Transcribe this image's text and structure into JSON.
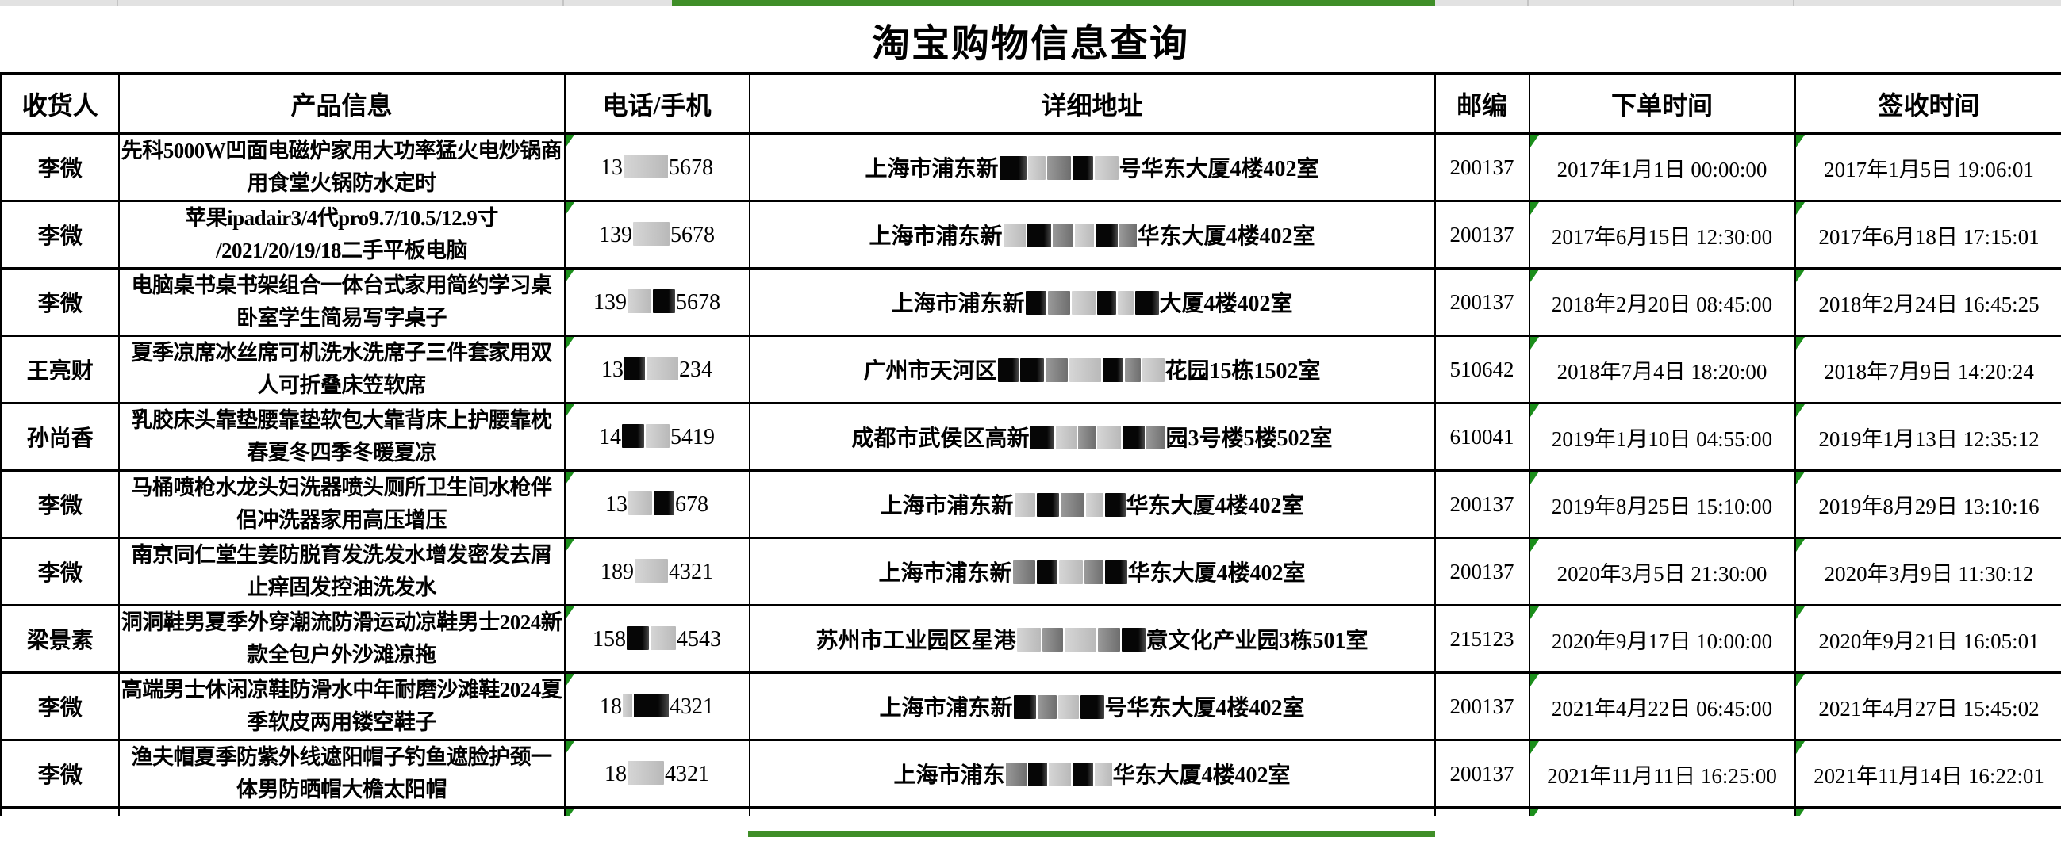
{
  "page": {
    "title": "淘宝购物信息查询"
  },
  "colors": {
    "selection_green": "#3f8e28",
    "triangle_green": "#1b8e1b",
    "top_strip_gray": "#e2e2e2",
    "grid_black": "#000000"
  },
  "table": {
    "headers": [
      "收货人",
      "产品信息",
      "电话/手机",
      "详细地址",
      "邮编",
      "下单时间",
      "签收时间"
    ],
    "header_keys": [
      "recipient",
      "product",
      "phone",
      "address",
      "postal",
      "order-time",
      "sign-time"
    ],
    "rows": [
      {
        "recipient": "李微",
        "product": [
          "先科5000W凹面电磁炉家用大功率猛火电炒锅商",
          "用食堂火锅防水定时"
        ],
        "phone": [
          {
            "t": "13"
          },
          {
            "r": "l",
            "w": 56
          },
          {
            "t": "5678"
          }
        ],
        "address": [
          {
            "t": "上海市浦东新"
          },
          {
            "r": "d",
            "w": 34
          },
          {
            "r": "l",
            "w": 22
          },
          {
            "r": "g",
            "w": 30
          },
          {
            "r": "d",
            "w": 26
          },
          {
            "r": "l",
            "w": 30
          },
          {
            "t": "号华东大厦4楼402室"
          }
        ],
        "postal": "200137",
        "order_time": "2017年1月1日 00:00:00",
        "sign_time": "2017年1月5日 19:06:01"
      },
      {
        "recipient": "李微",
        "product": [
          "苹果ipadair3/4代pro9.7/10.5/12.9寸",
          "/2021/20/19/18二手平板电脑"
        ],
        "phone": [
          {
            "t": "139"
          },
          {
            "r": "l",
            "w": 46
          },
          {
            "t": "5678"
          }
        ],
        "address": [
          {
            "t": "上海市浦东新"
          },
          {
            "r": "l",
            "w": 28
          },
          {
            "r": "d",
            "w": 30
          },
          {
            "r": "g",
            "w": 26
          },
          {
            "r": "l",
            "w": 24
          },
          {
            "r": "d",
            "w": 28
          },
          {
            "r": "g",
            "w": 22
          },
          {
            "t": "华东大厦4楼402室"
          }
        ],
        "postal": "200137",
        "order_time": "2017年6月15日 12:30:00",
        "sign_time": "2017年6月18日 17:15:01"
      },
      {
        "recipient": "李微",
        "product": [
          "电脑桌书桌书架组合一体台式家用简约学习桌",
          "卧室学生简易写字桌子"
        ],
        "phone": [
          {
            "t": "139"
          },
          {
            "r": "l",
            "w": 30
          },
          {
            "r": "d",
            "w": 28
          },
          {
            "t": "5678"
          }
        ],
        "address": [
          {
            "t": "上海市浦东新"
          },
          {
            "r": "d",
            "w": 26
          },
          {
            "r": "g",
            "w": 28
          },
          {
            "r": "l",
            "w": 30
          },
          {
            "r": "d",
            "w": 24
          },
          {
            "r": "l",
            "w": 20
          },
          {
            "r": "d",
            "w": 30
          },
          {
            "t": "大厦4楼402室"
          }
        ],
        "postal": "200137",
        "order_time": "2018年2月20日 08:45:00",
        "sign_time": "2018年2月24日 16:45:25"
      },
      {
        "recipient": "王亮财",
        "product": [
          "夏季凉席冰丝席可机洗水洗席子三件套家用双",
          "人可折叠床笠软席"
        ],
        "phone": [
          {
            "t": "13"
          },
          {
            "r": "d",
            "w": 26
          },
          {
            "r": "l",
            "w": 40
          },
          {
            "t": "234"
          }
        ],
        "address": [
          {
            "t": "广州市天河区"
          },
          {
            "r": "d",
            "w": 26
          },
          {
            "r": "d",
            "w": 30
          },
          {
            "r": "g",
            "w": 28
          },
          {
            "r": "l",
            "w": 40
          },
          {
            "r": "d",
            "w": 26
          },
          {
            "r": "g",
            "w": 20
          },
          {
            "r": "l",
            "w": 28
          },
          {
            "t": "花园15栋1502室"
          }
        ],
        "postal": "510642",
        "order_time": "2018年7月4日 18:20:00",
        "sign_time": "2018年7月9日 14:20:24"
      },
      {
        "recipient": "孙尚香",
        "product": [
          "乳胶床头靠垫腰靠垫软包大靠背床上护腰靠枕",
          "春夏冬四季冬暖夏凉"
        ],
        "phone": [
          {
            "t": "14"
          },
          {
            "r": "d",
            "w": 28
          },
          {
            "r": "l",
            "w": 30
          },
          {
            "t": "5419"
          }
        ],
        "address": [
          {
            "t": "成都市武侯区高新"
          },
          {
            "r": "d",
            "w": 30
          },
          {
            "r": "l",
            "w": 26
          },
          {
            "r": "g",
            "w": 22
          },
          {
            "r": "l",
            "w": 30
          },
          {
            "r": "d",
            "w": 28
          },
          {
            "r": "g",
            "w": 24
          },
          {
            "t": "园3号楼5楼502室"
          }
        ],
        "postal": "610041",
        "order_time": "2019年1月10日 04:55:00",
        "sign_time": "2019年1月13日 12:35:12"
      },
      {
        "recipient": "李微",
        "product": [
          "马桶喷枪水龙头妇洗器喷头厕所卫生间水枪伴",
          "侣冲洗器家用高压增压"
        ],
        "phone": [
          {
            "t": "13"
          },
          {
            "r": "l",
            "w": 30
          },
          {
            "r": "d",
            "w": 26
          },
          {
            "t": "678"
          }
        ],
        "address": [
          {
            "t": "上海市浦东新"
          },
          {
            "r": "l",
            "w": 26
          },
          {
            "r": "d",
            "w": 28
          },
          {
            "r": "g",
            "w": 30
          },
          {
            "r": "l",
            "w": 22
          },
          {
            "r": "d",
            "w": 26
          },
          {
            "t": "华东大厦4楼402室"
          }
        ],
        "postal": "200137",
        "order_time": "2019年8月25日 15:10:00",
        "sign_time": "2019年8月29日 13:10:16"
      },
      {
        "recipient": "李微",
        "product": [
          "南京同仁堂生姜防脱育发洗发水增发密发去屑",
          "止痒固发控油洗发水"
        ],
        "phone": [
          {
            "t": "189"
          },
          {
            "r": "l",
            "w": 42
          },
          {
            "t": "4321"
          }
        ],
        "address": [
          {
            "t": "上海市浦东新"
          },
          {
            "r": "g",
            "w": 28
          },
          {
            "r": "d",
            "w": 26
          },
          {
            "r": "l",
            "w": 30
          },
          {
            "r": "g",
            "w": 24
          },
          {
            "r": "d",
            "w": 28
          },
          {
            "t": "华东大厦4楼402室"
          }
        ],
        "postal": "200137",
        "order_time": "2020年3月5日 21:30:00",
        "sign_time": "2020年3月9日 11:30:12"
      },
      {
        "recipient": "梁景素",
        "product": [
          "洞洞鞋男夏季外穿潮流防滑运动凉鞋男士2024新",
          "款全包户外沙滩凉拖"
        ],
        "phone": [
          {
            "t": "158"
          },
          {
            "r": "d",
            "w": 28
          },
          {
            "r": "l",
            "w": 32
          },
          {
            "t": "4543"
          }
        ],
        "address": [
          {
            "t": "苏州市工业园区星港"
          },
          {
            "r": "l",
            "w": 30
          },
          {
            "r": "g",
            "w": 26
          },
          {
            "r": "l",
            "w": 40
          },
          {
            "r": "g",
            "w": 28
          },
          {
            "r": "d",
            "w": 30
          },
          {
            "t": "意文化产业园3栋501室"
          }
        ],
        "postal": "215123",
        "order_time": "2020年9月17日 10:00:00",
        "sign_time": "2020年9月21日 16:05:01"
      },
      {
        "recipient": "李微",
        "product": [
          "高端男士休闲凉鞋防滑水中年耐磨沙滩鞋2024夏",
          "季软皮两用镂空鞋子"
        ],
        "phone": [
          {
            "t": "18"
          },
          {
            "r": "l",
            "w": 12
          },
          {
            "r": "d",
            "w": 44
          },
          {
            "t": "4321"
          }
        ],
        "address": [
          {
            "t": "上海市浦东新"
          },
          {
            "r": "d",
            "w": 28
          },
          {
            "r": "g",
            "w": 24
          },
          {
            "r": "l",
            "w": 26
          },
          {
            "r": "d",
            "w": 30
          },
          {
            "t": "号华东大厦4楼402室"
          }
        ],
        "postal": "200137",
        "order_time": "2021年4月22日 06:45:00",
        "sign_time": "2021年4月27日 15:45:02"
      },
      {
        "recipient": "李微",
        "product": [
          "渔夫帽夏季防紫外线遮阳帽子钓鱼遮脸护颈一",
          "体男防晒帽大檐太阳帽"
        ],
        "phone": [
          {
            "t": "18"
          },
          {
            "r": "l",
            "w": 46
          },
          {
            "t": "4321"
          }
        ],
        "address": [
          {
            "t": "上海市浦东"
          },
          {
            "r": "g",
            "w": 26
          },
          {
            "r": "d",
            "w": 24
          },
          {
            "r": "l",
            "w": 28
          },
          {
            "r": "d",
            "w": 26
          },
          {
            "r": "l",
            "w": 22
          },
          {
            "t": "华东大厦4楼402室"
          }
        ],
        "postal": "200137",
        "order_time": "2021年11月11日 16:25:00",
        "sign_time": "2021年11月14日 16:22:01"
      }
    ],
    "partial_row_visible": true
  }
}
